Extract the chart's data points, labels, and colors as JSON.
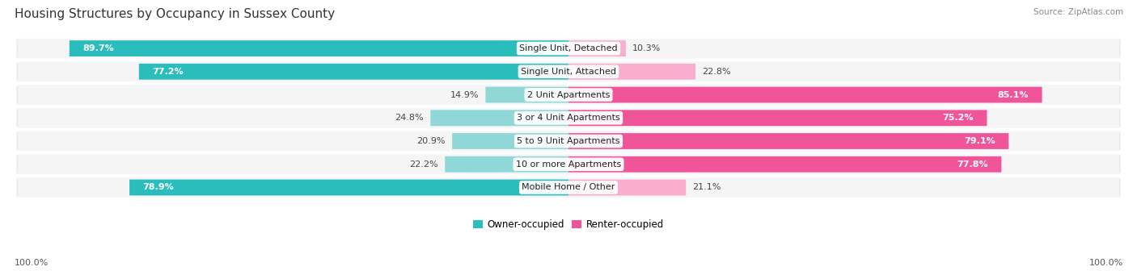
{
  "title": "Housing Structures by Occupancy in Sussex County",
  "source": "Source: ZipAtlas.com",
  "categories": [
    "Single Unit, Detached",
    "Single Unit, Attached",
    "2 Unit Apartments",
    "3 or 4 Unit Apartments",
    "5 to 9 Unit Apartments",
    "10 or more Apartments",
    "Mobile Home / Other"
  ],
  "owner_pct": [
    89.7,
    77.2,
    14.9,
    24.8,
    20.9,
    22.2,
    78.9
  ],
  "renter_pct": [
    10.3,
    22.8,
    85.1,
    75.2,
    79.1,
    77.8,
    21.1
  ],
  "owner_color_dark": "#2bbcbc",
  "renter_color_dark": "#f0559a",
  "owner_color_light": "#90d8d8",
  "renter_color_light": "#f9aecf",
  "row_bg_color": "#e8e8e8",
  "row_bg_inner": "#f5f5f5",
  "title_fontsize": 11,
  "label_fontsize": 8,
  "pct_fontsize": 8,
  "legend_fontsize": 8.5,
  "source_fontsize": 7.5,
  "footer_pct": "100.0%"
}
